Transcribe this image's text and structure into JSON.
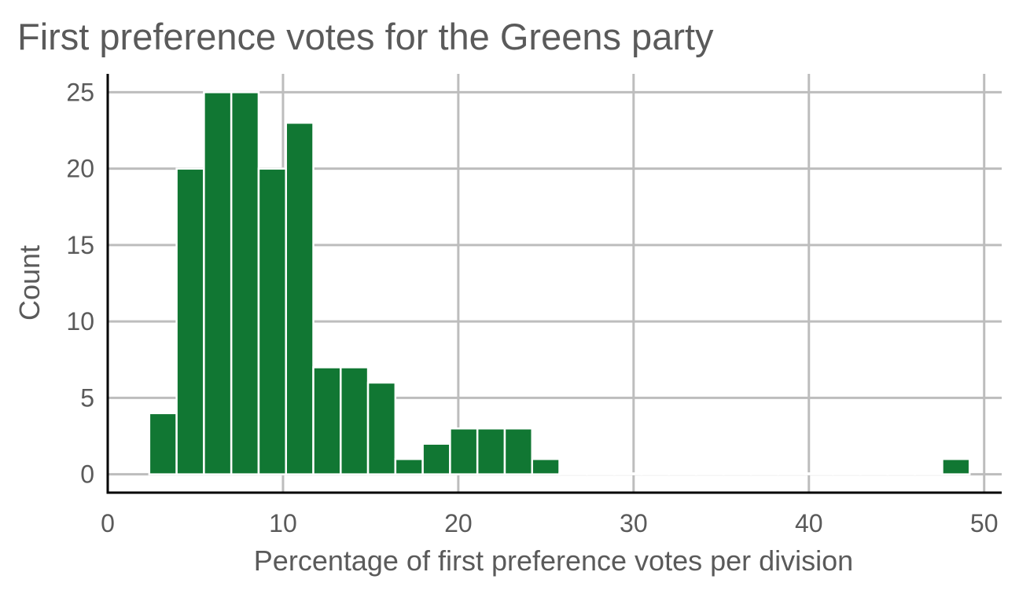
{
  "chart_data": {
    "type": "bar",
    "title": "First preference votes for the Greens party",
    "xlabel": "Percentage of first preference votes per division",
    "ylabel": "Count",
    "xlim": [
      0,
      51
    ],
    "ylim": [
      -1.2,
      26.2
    ],
    "x_ticks": [
      0,
      10,
      20,
      30,
      40,
      50
    ],
    "y_ticks": [
      0,
      5,
      10,
      15,
      20,
      25
    ],
    "grid": true,
    "legend": "none",
    "bar_color": "#117733",
    "bar_edge_color": "#ffffff",
    "grid_color": "#bdbdbd",
    "bins": [
      {
        "x0": 2.37,
        "x1": 3.93,
        "count": 4
      },
      {
        "x0": 3.93,
        "x1": 5.49,
        "count": 20
      },
      {
        "x0": 5.49,
        "x1": 7.05,
        "count": 25
      },
      {
        "x0": 7.05,
        "x1": 8.61,
        "count": 25
      },
      {
        "x0": 8.61,
        "x1": 10.17,
        "count": 20
      },
      {
        "x0": 10.17,
        "x1": 11.73,
        "count": 23
      },
      {
        "x0": 11.73,
        "x1": 13.29,
        "count": 7
      },
      {
        "x0": 13.29,
        "x1": 14.85,
        "count": 7
      },
      {
        "x0": 14.85,
        "x1": 16.41,
        "count": 6
      },
      {
        "x0": 16.41,
        "x1": 17.97,
        "count": 1
      },
      {
        "x0": 17.97,
        "x1": 19.53,
        "count": 2
      },
      {
        "x0": 19.53,
        "x1": 21.09,
        "count": 3
      },
      {
        "x0": 21.09,
        "x1": 22.65,
        "count": 3
      },
      {
        "x0": 22.65,
        "x1": 24.21,
        "count": 3
      },
      {
        "x0": 24.21,
        "x1": 25.77,
        "count": 1
      },
      {
        "x0": 25.77,
        "x1": 27.33,
        "count": 0
      },
      {
        "x0": 27.33,
        "x1": 28.89,
        "count": 0
      },
      {
        "x0": 28.89,
        "x1": 30.45,
        "count": 0
      },
      {
        "x0": 30.45,
        "x1": 32.01,
        "count": 0
      },
      {
        "x0": 32.01,
        "x1": 33.57,
        "count": 0
      },
      {
        "x0": 33.57,
        "x1": 35.13,
        "count": 0
      },
      {
        "x0": 35.13,
        "x1": 36.69,
        "count": 0
      },
      {
        "x0": 36.69,
        "x1": 38.25,
        "count": 0
      },
      {
        "x0": 38.25,
        "x1": 39.81,
        "count": 0
      },
      {
        "x0": 39.81,
        "x1": 41.37,
        "count": 0
      },
      {
        "x0": 41.37,
        "x1": 42.93,
        "count": 0
      },
      {
        "x0": 42.93,
        "x1": 44.49,
        "count": 0
      },
      {
        "x0": 44.49,
        "x1": 46.05,
        "count": 0
      },
      {
        "x0": 46.05,
        "x1": 47.61,
        "count": 0
      },
      {
        "x0": 47.61,
        "x1": 49.17,
        "count": 1
      }
    ]
  }
}
